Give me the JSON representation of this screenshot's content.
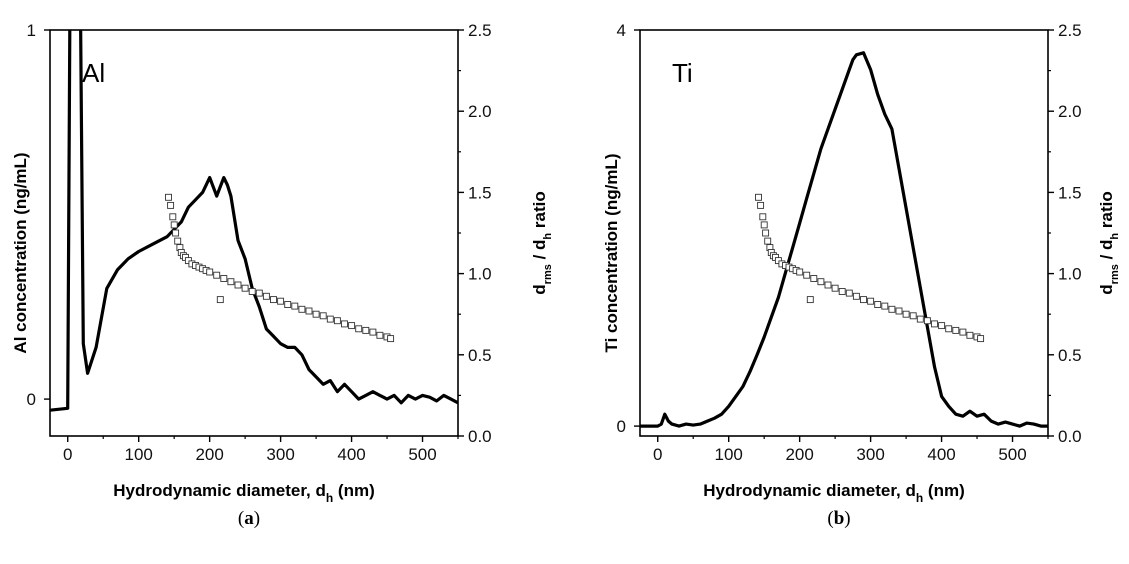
{
  "chart_data": [
    {
      "type": "line",
      "panel_label": "Al",
      "caption_letter": "a",
      "xlabel_main": "Hydrodynamic diameter, d",
      "xlabel_sub": "h",
      "xlabel_tail": " (nm)",
      "ylabel_left": "Al concentration (ng/mL)",
      "ylabel_right_main": "d",
      "ylabel_right_sub1": "rms",
      "ylabel_right_mid": " / d",
      "ylabel_right_sub2": "h",
      "ylabel_right_tail": " ratio",
      "xlim": [
        -25,
        550
      ],
      "ylim_left": [
        -0.1,
        1.0
      ],
      "ylim_right": [
        0.0,
        2.5
      ],
      "x_ticks": [
        0,
        100,
        200,
        300,
        400,
        500
      ],
      "y_left_ticks": [
        0,
        1
      ],
      "y_right_ticks": [
        0.0,
        0.5,
        1.0,
        1.5,
        2.0,
        2.5
      ],
      "concentration": {
        "x": [
          -25,
          0,
          3,
          8,
          18,
          22,
          28,
          40,
          55,
          70,
          85,
          100,
          120,
          140,
          150,
          160,
          170,
          180,
          190,
          200,
          210,
          220,
          225,
          230,
          240,
          250,
          260,
          270,
          280,
          290,
          300,
          310,
          320,
          330,
          340,
          350,
          360,
          370,
          380,
          390,
          400,
          410,
          420,
          430,
          440,
          450,
          460,
          470,
          480,
          490,
          500,
          510,
          520,
          530,
          540,
          550
        ],
        "y": [
          -0.03,
          -0.025,
          1.05,
          1.05,
          1.05,
          0.15,
          0.07,
          0.14,
          0.3,
          0.35,
          0.38,
          0.4,
          0.42,
          0.44,
          0.46,
          0.48,
          0.52,
          0.54,
          0.56,
          0.6,
          0.55,
          0.6,
          0.58,
          0.55,
          0.43,
          0.38,
          0.3,
          0.25,
          0.19,
          0.17,
          0.15,
          0.14,
          0.14,
          0.12,
          0.08,
          0.06,
          0.04,
          0.05,
          0.02,
          0.04,
          0.02,
          0.0,
          0.01,
          0.02,
          0.01,
          0.0,
          0.01,
          -0.01,
          0.01,
          0.0,
          0.01,
          0.005,
          -0.005,
          0.01,
          0.0,
          -0.01
        ]
      },
      "ratio": {
        "x": [
          142,
          145,
          148,
          150,
          152,
          155,
          158,
          160,
          163,
          166,
          170,
          175,
          180,
          185,
          190,
          195,
          200,
          210,
          220,
          230,
          240,
          250,
          260,
          270,
          280,
          290,
          300,
          310,
          320,
          330,
          340,
          350,
          360,
          370,
          380,
          390,
          400,
          410,
          420,
          430,
          440,
          450,
          455
        ],
        "y": [
          1.47,
          1.42,
          1.35,
          1.3,
          1.25,
          1.2,
          1.16,
          1.13,
          1.11,
          1.1,
          1.08,
          1.06,
          1.05,
          1.04,
          1.03,
          1.02,
          1.01,
          0.99,
          0.97,
          0.95,
          0.93,
          0.91,
          0.89,
          0.88,
          0.86,
          0.84,
          0.83,
          0.81,
          0.8,
          0.78,
          0.77,
          0.75,
          0.74,
          0.72,
          0.71,
          0.69,
          0.68,
          0.66,
          0.65,
          0.64,
          0.62,
          0.61,
          0.6
        ]
      },
      "ratio_outliers": {
        "x": [
          215
        ],
        "y": [
          0.84
        ]
      }
    },
    {
      "type": "line",
      "panel_label": "Ti",
      "caption_letter": "b",
      "xlabel_main": "Hydrodynamic diameter, d",
      "xlabel_sub": "h",
      "xlabel_tail": " (nm)",
      "ylabel_left": "Ti concentration (ng/mL)",
      "ylabel_right_main": "d",
      "ylabel_right_sub1": "rms",
      "ylabel_right_mid": " / d",
      "ylabel_right_sub2": "h",
      "ylabel_right_tail": " ratio",
      "xlim": [
        -25,
        550
      ],
      "ylim_left": [
        -0.1,
        4.0
      ],
      "ylim_right": [
        0.0,
        2.5
      ],
      "x_ticks": [
        0,
        100,
        200,
        300,
        400,
        500
      ],
      "y_left_ticks": [
        0,
        4
      ],
      "y_right_ticks": [
        0.0,
        0.5,
        1.0,
        1.5,
        2.0,
        2.5
      ],
      "concentration": {
        "x": [
          -25,
          0,
          5,
          10,
          15,
          20,
          30,
          40,
          50,
          60,
          70,
          80,
          90,
          100,
          110,
          120,
          130,
          140,
          150,
          160,
          170,
          180,
          190,
          200,
          210,
          220,
          230,
          240,
          250,
          260,
          270,
          275,
          280,
          290,
          300,
          310,
          320,
          330,
          340,
          350,
          360,
          370,
          380,
          390,
          400,
          410,
          420,
          430,
          440,
          450,
          460,
          470,
          480,
          490,
          500,
          510,
          520,
          530,
          540,
          550
        ],
        "y": [
          0.0,
          0.0,
          0.02,
          0.12,
          0.05,
          0.02,
          0.0,
          0.02,
          0.01,
          0.02,
          0.05,
          0.08,
          0.12,
          0.2,
          0.3,
          0.4,
          0.55,
          0.72,
          0.9,
          1.1,
          1.3,
          1.55,
          1.8,
          2.05,
          2.3,
          2.55,
          2.8,
          3.0,
          3.2,
          3.4,
          3.6,
          3.7,
          3.75,
          3.77,
          3.6,
          3.35,
          3.15,
          3.0,
          2.6,
          2.2,
          1.8,
          1.4,
          1.0,
          0.6,
          0.3,
          0.2,
          0.12,
          0.1,
          0.15,
          0.1,
          0.12,
          0.05,
          0.02,
          0.04,
          0.02,
          0.0,
          0.03,
          0.02,
          0.0,
          0.0
        ]
      },
      "ratio": {
        "x": [
          142,
          145,
          148,
          150,
          152,
          155,
          158,
          160,
          163,
          166,
          170,
          175,
          180,
          185,
          190,
          195,
          200,
          210,
          220,
          230,
          240,
          250,
          260,
          270,
          280,
          290,
          300,
          310,
          320,
          330,
          340,
          350,
          360,
          370,
          380,
          390,
          400,
          410,
          420,
          430,
          440,
          450,
          455
        ],
        "y": [
          1.47,
          1.42,
          1.35,
          1.3,
          1.25,
          1.2,
          1.16,
          1.13,
          1.11,
          1.1,
          1.08,
          1.06,
          1.05,
          1.04,
          1.03,
          1.02,
          1.01,
          0.99,
          0.97,
          0.95,
          0.93,
          0.91,
          0.89,
          0.88,
          0.86,
          0.84,
          0.83,
          0.81,
          0.8,
          0.78,
          0.77,
          0.75,
          0.74,
          0.72,
          0.71,
          0.69,
          0.68,
          0.66,
          0.65,
          0.64,
          0.62,
          0.61,
          0.6
        ]
      },
      "ratio_outliers": {
        "x": [
          215
        ],
        "y": [
          0.84
        ]
      }
    }
  ]
}
